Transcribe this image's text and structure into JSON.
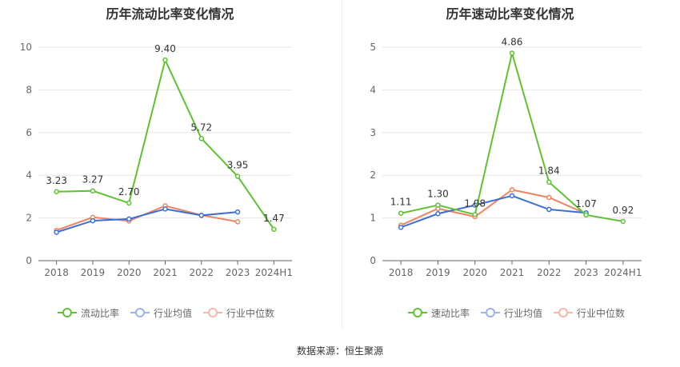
{
  "chart_data": [
    {
      "type": "line",
      "title": "历年流动比率变化情况",
      "categories": [
        "2018",
        "2019",
        "2020",
        "2021",
        "2022",
        "2023",
        "2024H1"
      ],
      "ylim": [
        0,
        10
      ],
      "yticks": [
        "0",
        "2",
        "4",
        "6",
        "8",
        "10"
      ],
      "series": [
        {
          "name": "流动比率",
          "color": "#5ec232",
          "values": [
            3.23,
            3.27,
            2.7,
            9.4,
            5.72,
            3.95,
            1.47
          ],
          "labels": [
            "3.23",
            "3.27",
            "2.70",
            "9.40",
            "5.72",
            "3.95",
            "1.47"
          ]
        },
        {
          "name": "行业均值",
          "color": "#3b6fd8",
          "values": [
            1.33,
            1.87,
            1.95,
            2.42,
            2.12,
            2.28,
            null
          ]
        },
        {
          "name": "行业中位数",
          "color": "#ee8462",
          "values": [
            1.42,
            2.03,
            1.86,
            2.57,
            2.13,
            1.82,
            null
          ]
        }
      ]
    },
    {
      "type": "line",
      "title": "历年速动比率变化情况",
      "categories": [
        "2018",
        "2019",
        "2020",
        "2021",
        "2022",
        "2023",
        "2024H1"
      ],
      "ylim": [
        0,
        5
      ],
      "yticks": [
        "0",
        "1",
        "2",
        "3",
        "4",
        "5"
      ],
      "series": [
        {
          "name": "速动比率",
          "color": "#5ec232",
          "values": [
            1.11,
            1.3,
            1.08,
            4.86,
            1.84,
            1.07,
            0.92
          ],
          "labels": [
            "1.11",
            "1.30",
            "1.08",
            "4.86",
            "1.84",
            "1.07",
            "0.92"
          ]
        },
        {
          "name": "行业均值",
          "color": "#3b6fd8",
          "values": [
            0.78,
            1.1,
            1.3,
            1.52,
            1.2,
            1.12,
            null
          ]
        },
        {
          "name": "行业中位数",
          "color": "#ee8462",
          "values": [
            0.83,
            1.22,
            1.03,
            1.66,
            1.48,
            1.1,
            null
          ]
        }
      ]
    }
  ],
  "footer": "数据来源：恒生聚源"
}
